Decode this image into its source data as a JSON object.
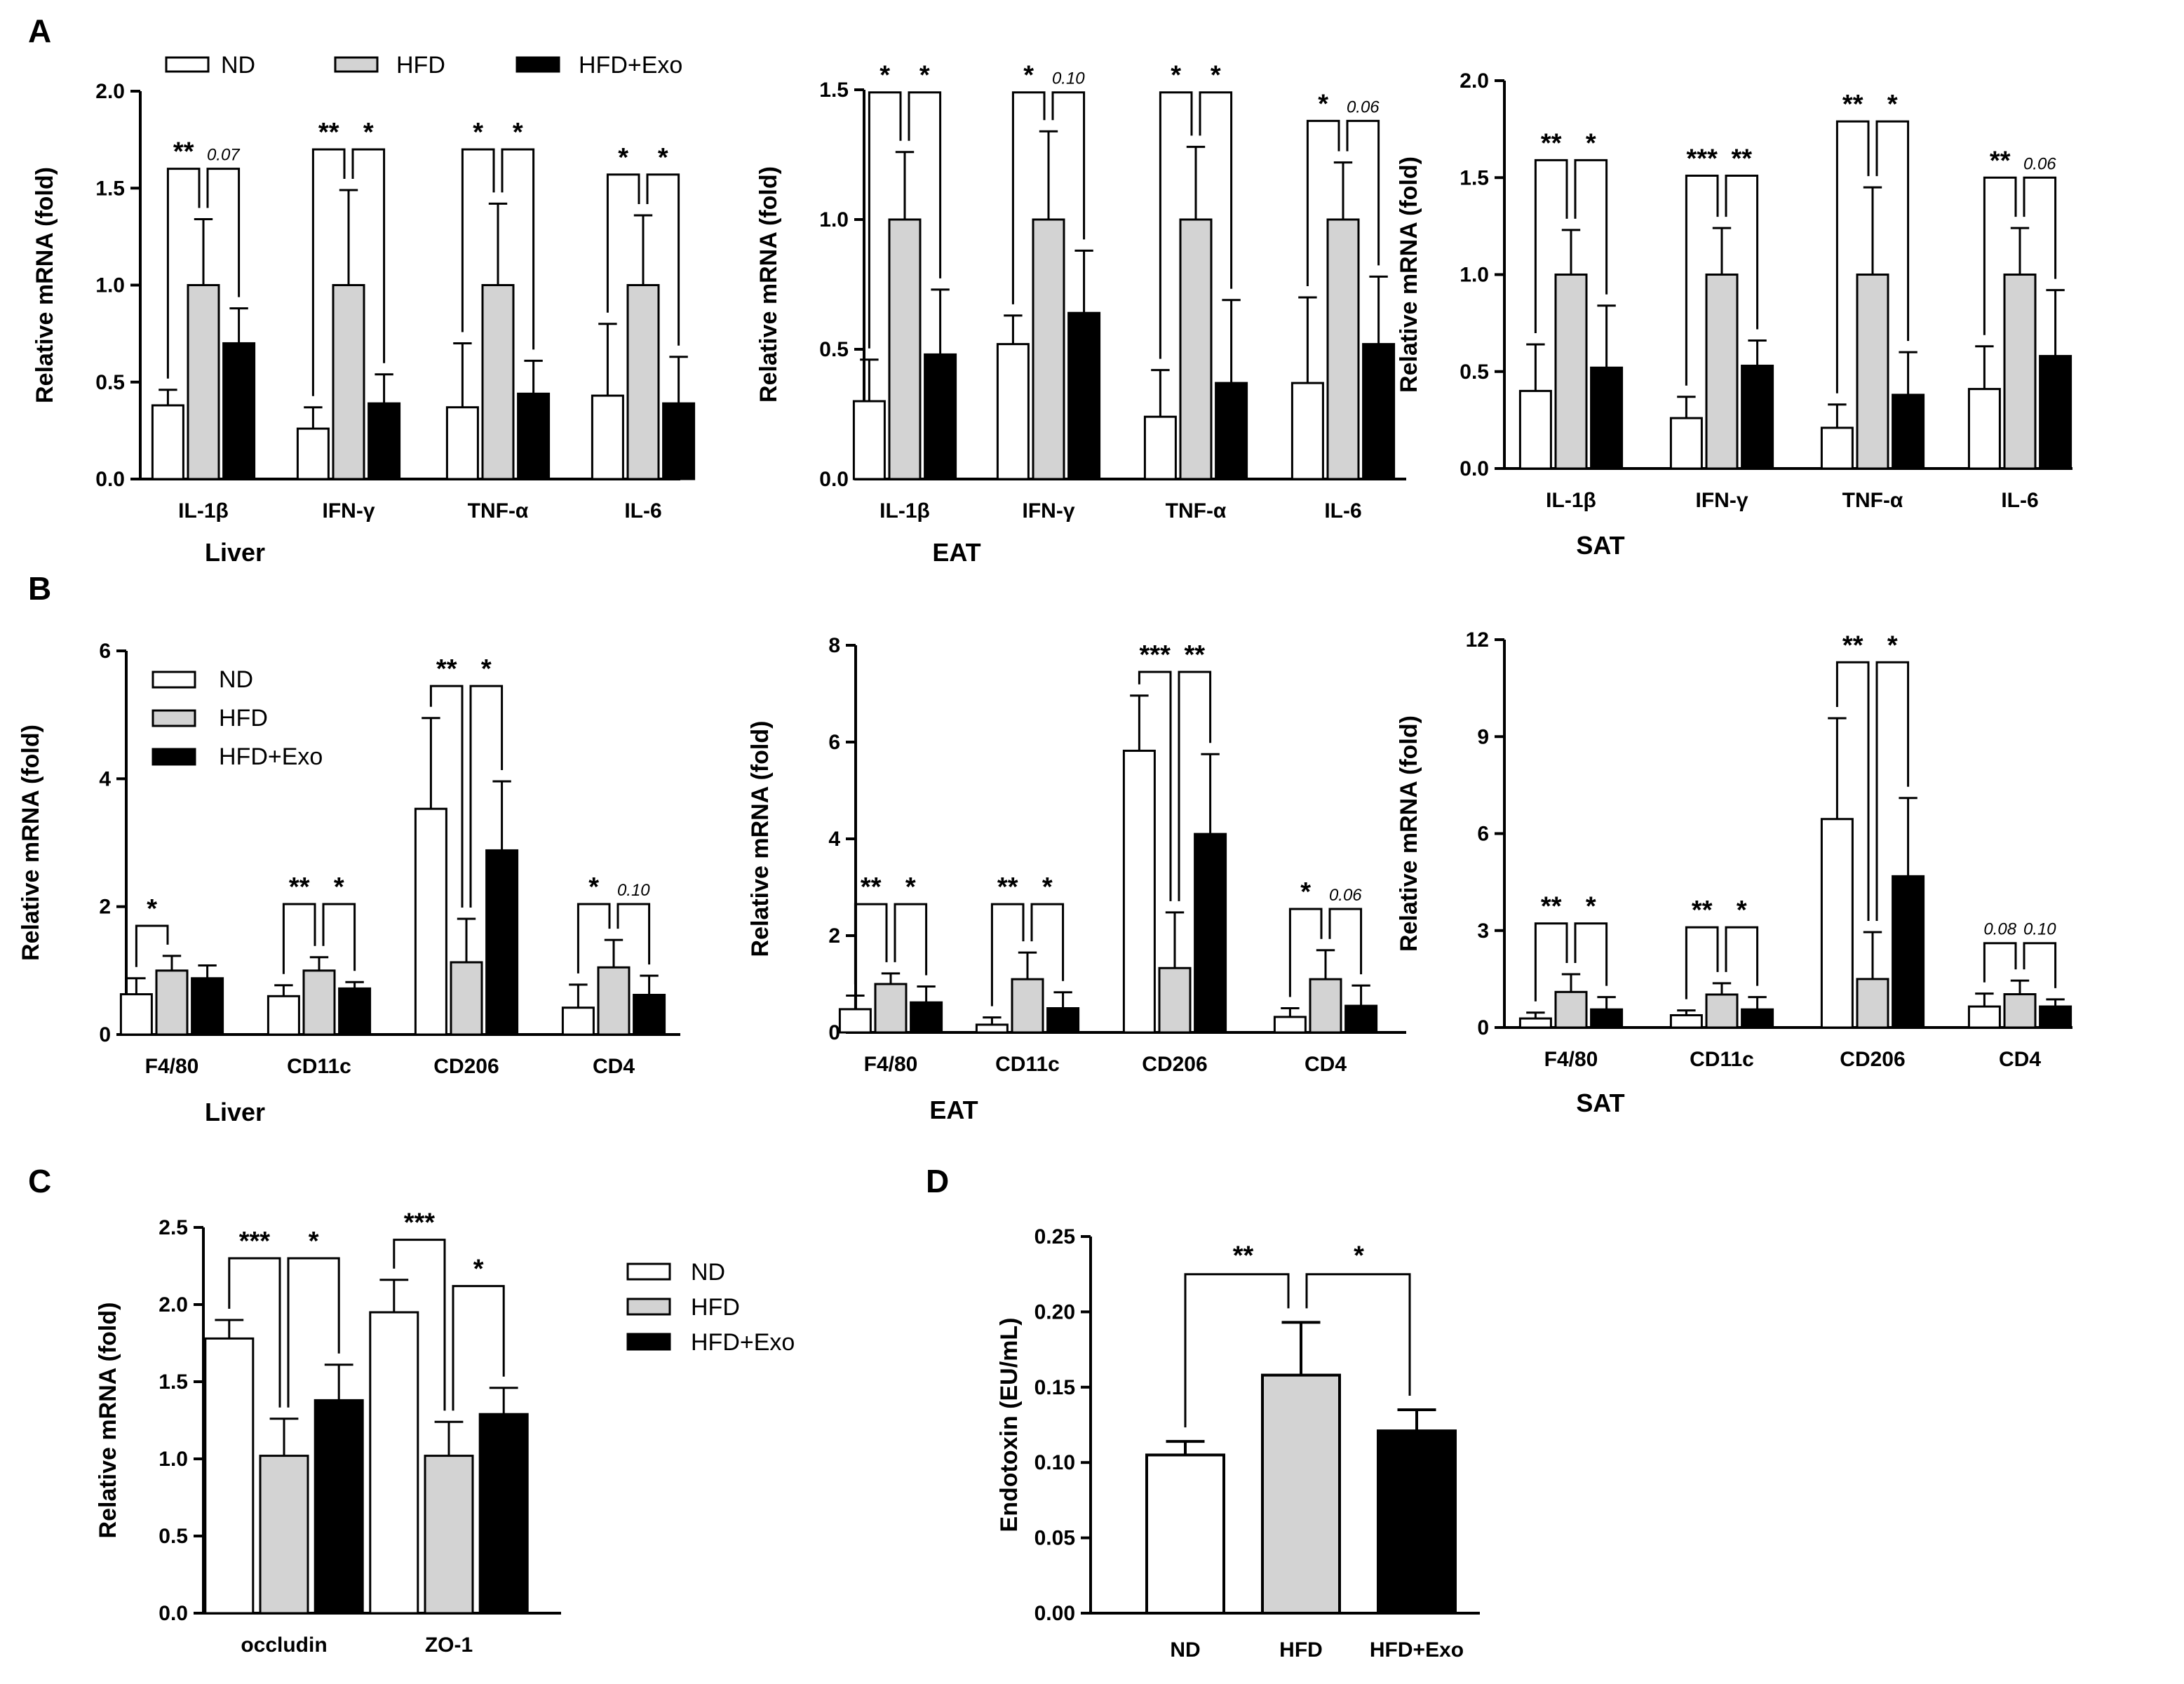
{
  "colors": {
    "ND": "#ffffff",
    "HFD": "#d3d3d3",
    "HFD+Exo": "#000000",
    "stroke": "#000000"
  },
  "legend_labels": [
    "ND",
    "HFD",
    "HFD+Exo"
  ],
  "chart_data": [
    {
      "id": "A1",
      "panel_label": "A",
      "type": "bar",
      "ylabel": "Relative mRNA (fold)",
      "xlabel": "Liver",
      "ylim": [
        0,
        2.0
      ],
      "yticks": [
        "0.0",
        "0.5",
        "1.0",
        "1.5",
        "2.0"
      ],
      "categories": [
        "IL-1β",
        "IFN-γ",
        "TNF-α",
        "IL-6"
      ],
      "series": [
        {
          "name": "ND",
          "values": [
            0.38,
            0.26,
            0.37,
            0.43
          ],
          "errors": [
            0.08,
            0.11,
            0.33,
            0.37
          ]
        },
        {
          "name": "HFD",
          "values": [
            1.0,
            1.0,
            1.0,
            1.0
          ],
          "errors": [
            0.34,
            0.49,
            0.42,
            0.36
          ]
        },
        {
          "name": "HFD+Exo",
          "values": [
            0.7,
            0.39,
            0.44,
            0.39
          ],
          "errors": [
            0.18,
            0.15,
            0.17,
            0.24
          ]
        }
      ],
      "sig": [
        {
          "cat": 0,
          "pair": "left",
          "text": "**",
          "level": 1.6
        },
        {
          "cat": 0,
          "pair": "right",
          "text": "0.07",
          "italic": true,
          "level": 1.6
        },
        {
          "cat": 1,
          "pair": "left",
          "text": "**",
          "level": 1.7
        },
        {
          "cat": 1,
          "pair": "right",
          "text": "*",
          "level": 1.7
        },
        {
          "cat": 2,
          "pair": "left",
          "text": "*",
          "level": 1.7
        },
        {
          "cat": 2,
          "pair": "right",
          "text": "*",
          "level": 1.7
        },
        {
          "cat": 3,
          "pair": "left",
          "text": "*",
          "level": 1.57
        },
        {
          "cat": 3,
          "pair": "right",
          "text": "*",
          "level": 1.57
        }
      ]
    },
    {
      "id": "A2",
      "type": "bar",
      "ylabel": "Relative mRNA (fold)",
      "xlabel": "EAT",
      "ylim": [
        0,
        1.5
      ],
      "yticks": [
        "0.0",
        "0.5",
        "1.0",
        "1.5"
      ],
      "categories": [
        "IL-1β",
        "IFN-γ",
        "TNF-α",
        "IL-6"
      ],
      "series": [
        {
          "name": "ND",
          "values": [
            0.3,
            0.52,
            0.24,
            0.37
          ],
          "errors": [
            0.16,
            0.11,
            0.18,
            0.33
          ]
        },
        {
          "name": "HFD",
          "values": [
            1.0,
            1.0,
            1.0,
            1.0
          ],
          "errors": [
            0.26,
            0.34,
            0.28,
            0.22
          ]
        },
        {
          "name": "HFD+Exo",
          "values": [
            0.48,
            0.64,
            0.37,
            0.52
          ],
          "errors": [
            0.25,
            0.24,
            0.32,
            0.26
          ]
        }
      ],
      "sig": [
        {
          "cat": 0,
          "pair": "left",
          "text": "*",
          "level": 1.49
        },
        {
          "cat": 0,
          "pair": "right",
          "text": "*",
          "level": 1.49
        },
        {
          "cat": 1,
          "pair": "left",
          "text": "*",
          "level": 1.49
        },
        {
          "cat": 1,
          "pair": "right",
          "text": "0.10",
          "italic": true,
          "level": 1.49
        },
        {
          "cat": 2,
          "pair": "left",
          "text": "*",
          "level": 1.49
        },
        {
          "cat": 2,
          "pair": "right",
          "text": "*",
          "level": 1.49
        },
        {
          "cat": 3,
          "pair": "left",
          "text": "*",
          "level": 1.38
        },
        {
          "cat": 3,
          "pair": "right",
          "text": "0.06",
          "italic": true,
          "level": 1.38
        }
      ]
    },
    {
      "id": "A3",
      "type": "bar",
      "ylabel": "Relative mRNA (fold)",
      "xlabel": "SAT",
      "ylim": [
        0,
        2.0
      ],
      "yticks": [
        "0.0",
        "0.5",
        "1.0",
        "1.5",
        "2.0"
      ],
      "categories": [
        "IL-1β",
        "IFN-γ",
        "TNF-α",
        "IL-6"
      ],
      "series": [
        {
          "name": "ND",
          "values": [
            0.4,
            0.26,
            0.21,
            0.41
          ],
          "errors": [
            0.24,
            0.11,
            0.12,
            0.22
          ]
        },
        {
          "name": "HFD",
          "values": [
            1.0,
            1.0,
            1.0,
            1.0
          ],
          "errors": [
            0.23,
            0.24,
            0.45,
            0.24
          ]
        },
        {
          "name": "HFD+Exo",
          "values": [
            0.52,
            0.53,
            0.38,
            0.58
          ],
          "errors": [
            0.32,
            0.13,
            0.22,
            0.34
          ]
        }
      ],
      "sig": [
        {
          "cat": 0,
          "pair": "left",
          "text": "**",
          "level": 1.59
        },
        {
          "cat": 0,
          "pair": "right",
          "text": "*",
          "level": 1.59
        },
        {
          "cat": 1,
          "pair": "left",
          "text": "***",
          "level": 1.51
        },
        {
          "cat": 1,
          "pair": "right",
          "text": "**",
          "level": 1.51
        },
        {
          "cat": 2,
          "pair": "left",
          "text": "**",
          "level": 1.79
        },
        {
          "cat": 2,
          "pair": "right",
          "text": "*",
          "level": 1.79
        },
        {
          "cat": 3,
          "pair": "left",
          "text": "**",
          "level": 1.5
        },
        {
          "cat": 3,
          "pair": "right",
          "text": "0.06",
          "italic": true,
          "level": 1.5
        }
      ]
    },
    {
      "id": "B1",
      "panel_label": "B",
      "type": "bar",
      "ylabel": "Relative mRNA (fold)",
      "xlabel": "Liver",
      "ylim": [
        0,
        6
      ],
      "yticks": [
        "0",
        "2",
        "4",
        "6"
      ],
      "categories": [
        "F4/80",
        "CD11c",
        "CD206",
        "CD4"
      ],
      "series": [
        {
          "name": "ND",
          "values": [
            0.63,
            0.6,
            3.53,
            0.42
          ],
          "errors": [
            0.25,
            0.17,
            1.42,
            0.36
          ]
        },
        {
          "name": "HFD",
          "values": [
            1.0,
            1.0,
            1.13,
            1.05
          ],
          "errors": [
            0.23,
            0.21,
            0.68,
            0.43
          ]
        },
        {
          "name": "HFD+Exo",
          "values": [
            0.88,
            0.72,
            2.88,
            0.62
          ],
          "errors": [
            0.2,
            0.1,
            1.08,
            0.3
          ]
        }
      ],
      "sig": [
        {
          "cat": 0,
          "pair": "left",
          "text": "*",
          "level": 1.7
        },
        {
          "cat": 1,
          "pair": "left",
          "text": "**",
          "level": 2.04
        },
        {
          "cat": 1,
          "pair": "right",
          "text": "*",
          "level": 2.04
        },
        {
          "cat": 2,
          "pair": "left",
          "text": "**",
          "level": 5.45
        },
        {
          "cat": 2,
          "pair": "right",
          "text": "*",
          "level": 5.45
        },
        {
          "cat": 3,
          "pair": "left",
          "text": "*",
          "level": 2.04
        },
        {
          "cat": 3,
          "pair": "right",
          "text": "0.10",
          "italic": true,
          "level": 2.04
        }
      ]
    },
    {
      "id": "B2",
      "type": "bar",
      "ylabel": "Relative mRNA (fold)",
      "xlabel": "EAT",
      "ylim": [
        0,
        8
      ],
      "yticks": [
        "0",
        "2",
        "4",
        "6",
        "8"
      ],
      "categories": [
        "F4/80",
        "CD11c",
        "CD206",
        "CD4"
      ],
      "series": [
        {
          "name": "ND",
          "values": [
            0.48,
            0.16,
            5.82,
            0.32
          ],
          "errors": [
            0.28,
            0.15,
            1.14,
            0.18
          ]
        },
        {
          "name": "HFD",
          "values": [
            1.0,
            1.1,
            1.33,
            1.1
          ],
          "errors": [
            0.22,
            0.55,
            1.15,
            0.6
          ]
        },
        {
          "name": "HFD+Exo",
          "values": [
            0.62,
            0.5,
            4.1,
            0.55
          ],
          "errors": [
            0.33,
            0.33,
            1.65,
            0.42
          ]
        }
      ],
      "sig": [
        {
          "cat": 0,
          "pair": "left",
          "text": "**",
          "level": 2.65
        },
        {
          "cat": 0,
          "pair": "right",
          "text": "*",
          "level": 2.65
        },
        {
          "cat": 1,
          "pair": "left",
          "text": "**",
          "level": 2.65
        },
        {
          "cat": 1,
          "pair": "right",
          "text": "*",
          "level": 2.65
        },
        {
          "cat": 2,
          "pair": "left",
          "text": "***",
          "level": 7.45
        },
        {
          "cat": 2,
          "pair": "right",
          "text": "**",
          "level": 7.45
        },
        {
          "cat": 3,
          "pair": "left",
          "text": "*",
          "level": 2.55
        },
        {
          "cat": 3,
          "pair": "right",
          "text": "0.06",
          "italic": true,
          "level": 2.55
        }
      ]
    },
    {
      "id": "B3",
      "type": "bar",
      "ylabel": "Relative mRNA (fold)",
      "xlabel": "SAT",
      "ylim": [
        0,
        12
      ],
      "yticks": [
        "0",
        "3",
        "6",
        "9",
        "12"
      ],
      "categories": [
        "F4/80",
        "CD11c",
        "CD206",
        "CD4"
      ],
      "series": [
        {
          "name": "ND",
          "values": [
            0.28,
            0.38,
            6.45,
            0.65
          ],
          "errors": [
            0.18,
            0.15,
            3.12,
            0.4
          ]
        },
        {
          "name": "HFD",
          "values": [
            1.1,
            1.02,
            1.5,
            1.03
          ],
          "errors": [
            0.55,
            0.35,
            1.45,
            0.42
          ]
        },
        {
          "name": "HFD+Exo",
          "values": [
            0.56,
            0.56,
            4.68,
            0.65
          ],
          "errors": [
            0.38,
            0.38,
            2.42,
            0.22
          ]
        }
      ],
      "sig": [
        {
          "cat": 0,
          "pair": "left",
          "text": "**",
          "level": 3.22
        },
        {
          "cat": 0,
          "pair": "right",
          "text": "*",
          "level": 3.22
        },
        {
          "cat": 1,
          "pair": "left",
          "text": "**",
          "level": 3.1
        },
        {
          "cat": 1,
          "pair": "right",
          "text": "*",
          "level": 3.1
        },
        {
          "cat": 2,
          "pair": "left",
          "text": "**",
          "level": 11.3
        },
        {
          "cat": 2,
          "pair": "right",
          "text": "*",
          "level": 11.3
        },
        {
          "cat": 3,
          "pair": "left",
          "text": "0.08",
          "italic": true,
          "level": 2.61
        },
        {
          "cat": 3,
          "pair": "right",
          "text": "0.10",
          "italic": true,
          "level": 2.61
        }
      ]
    },
    {
      "id": "C",
      "panel_label": "C",
      "type": "bar",
      "ylabel": "Relative mRNA (fold)",
      "xlabel": "",
      "ylim": [
        0,
        2.5
      ],
      "yticks": [
        "0.0",
        "0.5",
        "1.0",
        "1.5",
        "2.0",
        "2.5"
      ],
      "categories": [
        "occludin",
        "ZO-1"
      ],
      "series": [
        {
          "name": "ND",
          "values": [
            1.78,
            1.95
          ],
          "errors": [
            0.12,
            0.21
          ]
        },
        {
          "name": "HFD",
          "values": [
            1.02,
            1.02
          ],
          "errors": [
            0.24,
            0.22
          ]
        },
        {
          "name": "HFD+Exo",
          "values": [
            1.38,
            1.29
          ],
          "errors": [
            0.23,
            0.17
          ]
        }
      ],
      "sig": [
        {
          "cat": 0,
          "pair": "left",
          "text": "***",
          "level": 2.3
        },
        {
          "cat": 0,
          "pair": "right",
          "text": "*",
          "level": 2.3
        },
        {
          "cat": 1,
          "pair": "left",
          "text": "***",
          "level": 2.42
        },
        {
          "cat": 1,
          "pair": "right",
          "text": "*",
          "level": 2.12
        }
      ]
    },
    {
      "id": "D",
      "panel_label": "D",
      "type": "bar",
      "ylabel": "Endotoxin (EU/mL)",
      "xlabel": "",
      "ylim": [
        0,
        0.25
      ],
      "yticks": [
        "0.00",
        "0.05",
        "0.10",
        "0.15",
        "0.20",
        "0.25"
      ],
      "categories": [
        "ND",
        "HFD",
        "HFD+Exo"
      ],
      "values": [
        0.105,
        0.158,
        0.121
      ],
      "errors": [
        0.009,
        0.035,
        0.014
      ],
      "sig": [
        {
          "from": 0,
          "to": 1,
          "text": "**",
          "level": 0.225
        },
        {
          "from": 1,
          "to": 2,
          "text": "*",
          "level": 0.225
        }
      ]
    }
  ]
}
